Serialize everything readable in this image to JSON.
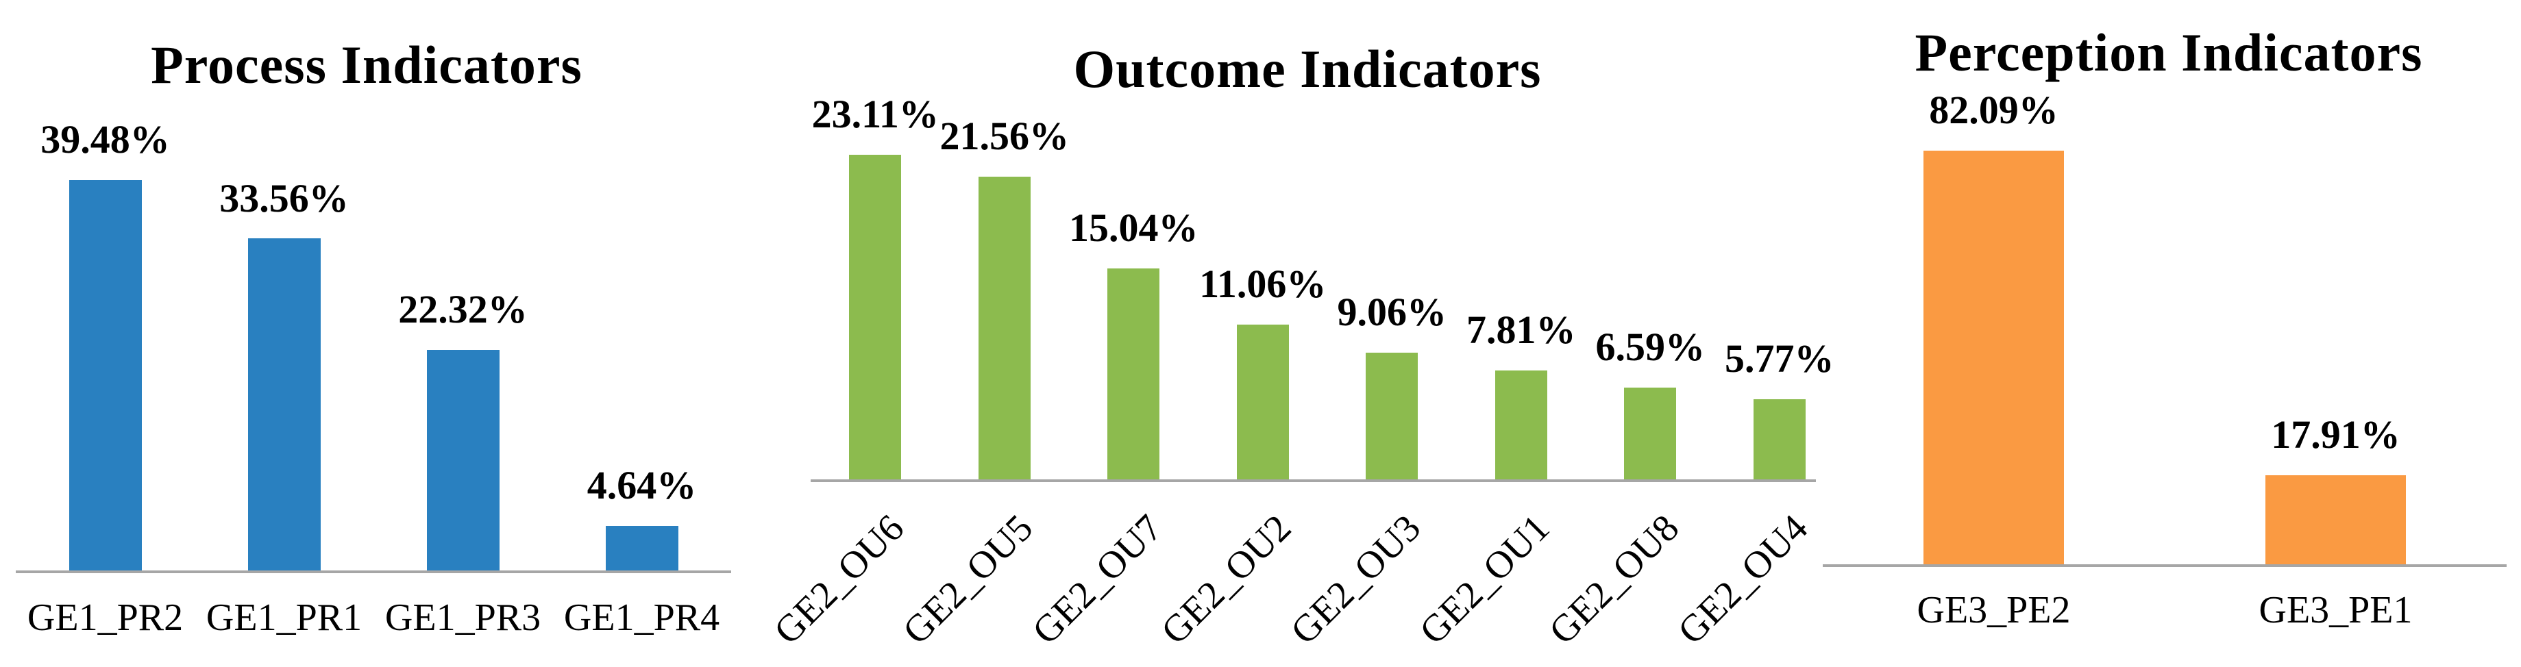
{
  "background_color": "#ffffff",
  "text_color": "#000000",
  "chart_data": [
    {
      "type": "bar",
      "title": "Process Indicators",
      "categories": [
        "GE1_PR2",
        "GE1_PR1",
        "GE1_PR3",
        "GE1_PR4"
      ],
      "values": [
        39.48,
        33.56,
        22.32,
        4.64
      ],
      "value_labels": [
        "39.48%",
        "33.56%",
        "22.32%",
        "4.64%"
      ],
      "bar_color": "#2980C0",
      "axis_color": "#A6A6A6",
      "xlabel": "",
      "ylabel": "",
      "ylim": [
        0,
        45
      ],
      "grid": false,
      "legend": "none",
      "category_rotation_deg": 0,
      "value_label_position": "above-bar"
    },
    {
      "type": "bar",
      "title": "Outcome Indicators",
      "categories": [
        "GE2_OU6",
        "GE2_OU5",
        "GE2_OU7",
        "GE2_OU2",
        "GE2_OU3",
        "GE2_OU1",
        "GE2_OU8",
        "GE2_OU4"
      ],
      "values": [
        23.11,
        21.56,
        15.04,
        11.06,
        9.06,
        7.81,
        6.59,
        5.77
      ],
      "value_labels": [
        "23.11%",
        "21.56%",
        "15.04%",
        "11.06%",
        "9.06%",
        "7.81%",
        "6.59%",
        "5.77%"
      ],
      "bar_color": "#8CBB4E",
      "axis_color": "#A6A6A6",
      "xlabel": "",
      "ylabel": "",
      "ylim": [
        0,
        25
      ],
      "grid": false,
      "legend": "none",
      "category_rotation_deg": -45,
      "value_label_position": "above-bar"
    },
    {
      "type": "bar",
      "title": "Perception Indicators",
      "categories": [
        "GE3_PE2",
        "GE3_PE1"
      ],
      "values": [
        82.09,
        17.91
      ],
      "value_labels": [
        "82.09%",
        "17.91%"
      ],
      "bar_color": "#FA9A42",
      "axis_color": "#A6A6A6",
      "xlabel": "",
      "ylabel": "",
      "ylim": [
        0,
        90
      ],
      "grid": false,
      "legend": "none",
      "category_rotation_deg": 0,
      "value_label_position": "above-bar"
    }
  ]
}
